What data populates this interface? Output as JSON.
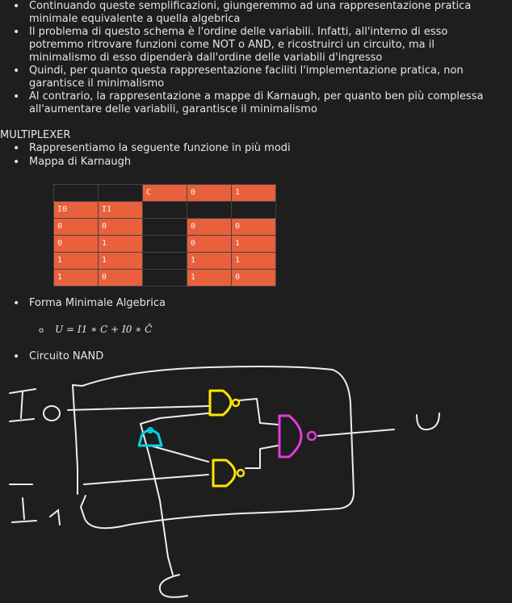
{
  "intro_bullets": [
    "Continuando queste semplificazioni, giungeremmo ad una rappresentazione pratica minimale equivalente a quella algebrica",
    "Il problema di questo schema è l'ordine delle variabili. Infatti, all'interno di esso potremmo ritrovare funzioni come NOT o AND, e ricostruirci un circuito, ma il minimalismo di esso dipenderà dall'ordine delle variabili d'ingresso",
    "Quindi, per quanto questa rappresentazione faciliti l'implementazione pratica, non garantisce il minimalismo",
    "Al contrario, la rappresentazione a mappe di Karnaugh, per quanto ben più complessa all'aumentare delle variabili, garantisce il minimalismo"
  ],
  "section_title": "MULTIPLEXER",
  "mux_bullets": [
    "Rappresentiamo la seguente funzione in più modi",
    "Mappa di Karnaugh"
  ],
  "kmap": {
    "header": [
      "",
      "",
      "C",
      "0",
      "1"
    ],
    "rows": [
      [
        "I0",
        "I1",
        "",
        "",
        ""
      ],
      [
        "0",
        "0",
        "",
        "0",
        "0"
      ],
      [
        "0",
        "1",
        "",
        "0",
        "1"
      ],
      [
        "1",
        "1",
        "",
        "1",
        "1"
      ],
      [
        "1",
        "0",
        "",
        "1",
        "0"
      ]
    ],
    "cell_color": "#e8603c"
  },
  "forma_label": "Forma Minimale Algebrica",
  "formula_ring": "o",
  "formula": "U = I1 ∗ C +  I0  ∗ C̄",
  "nand_label": "Circuito NAND",
  "circuit": {
    "label_i0": "I o",
    "label_i1": "I ₁",
    "label_c": "C",
    "label_u": "U",
    "gate_yellow": "#ffe600",
    "gate_cyan": "#00d5e8",
    "gate_magenta": "#e63ad9",
    "wire_color": "#ededed"
  }
}
